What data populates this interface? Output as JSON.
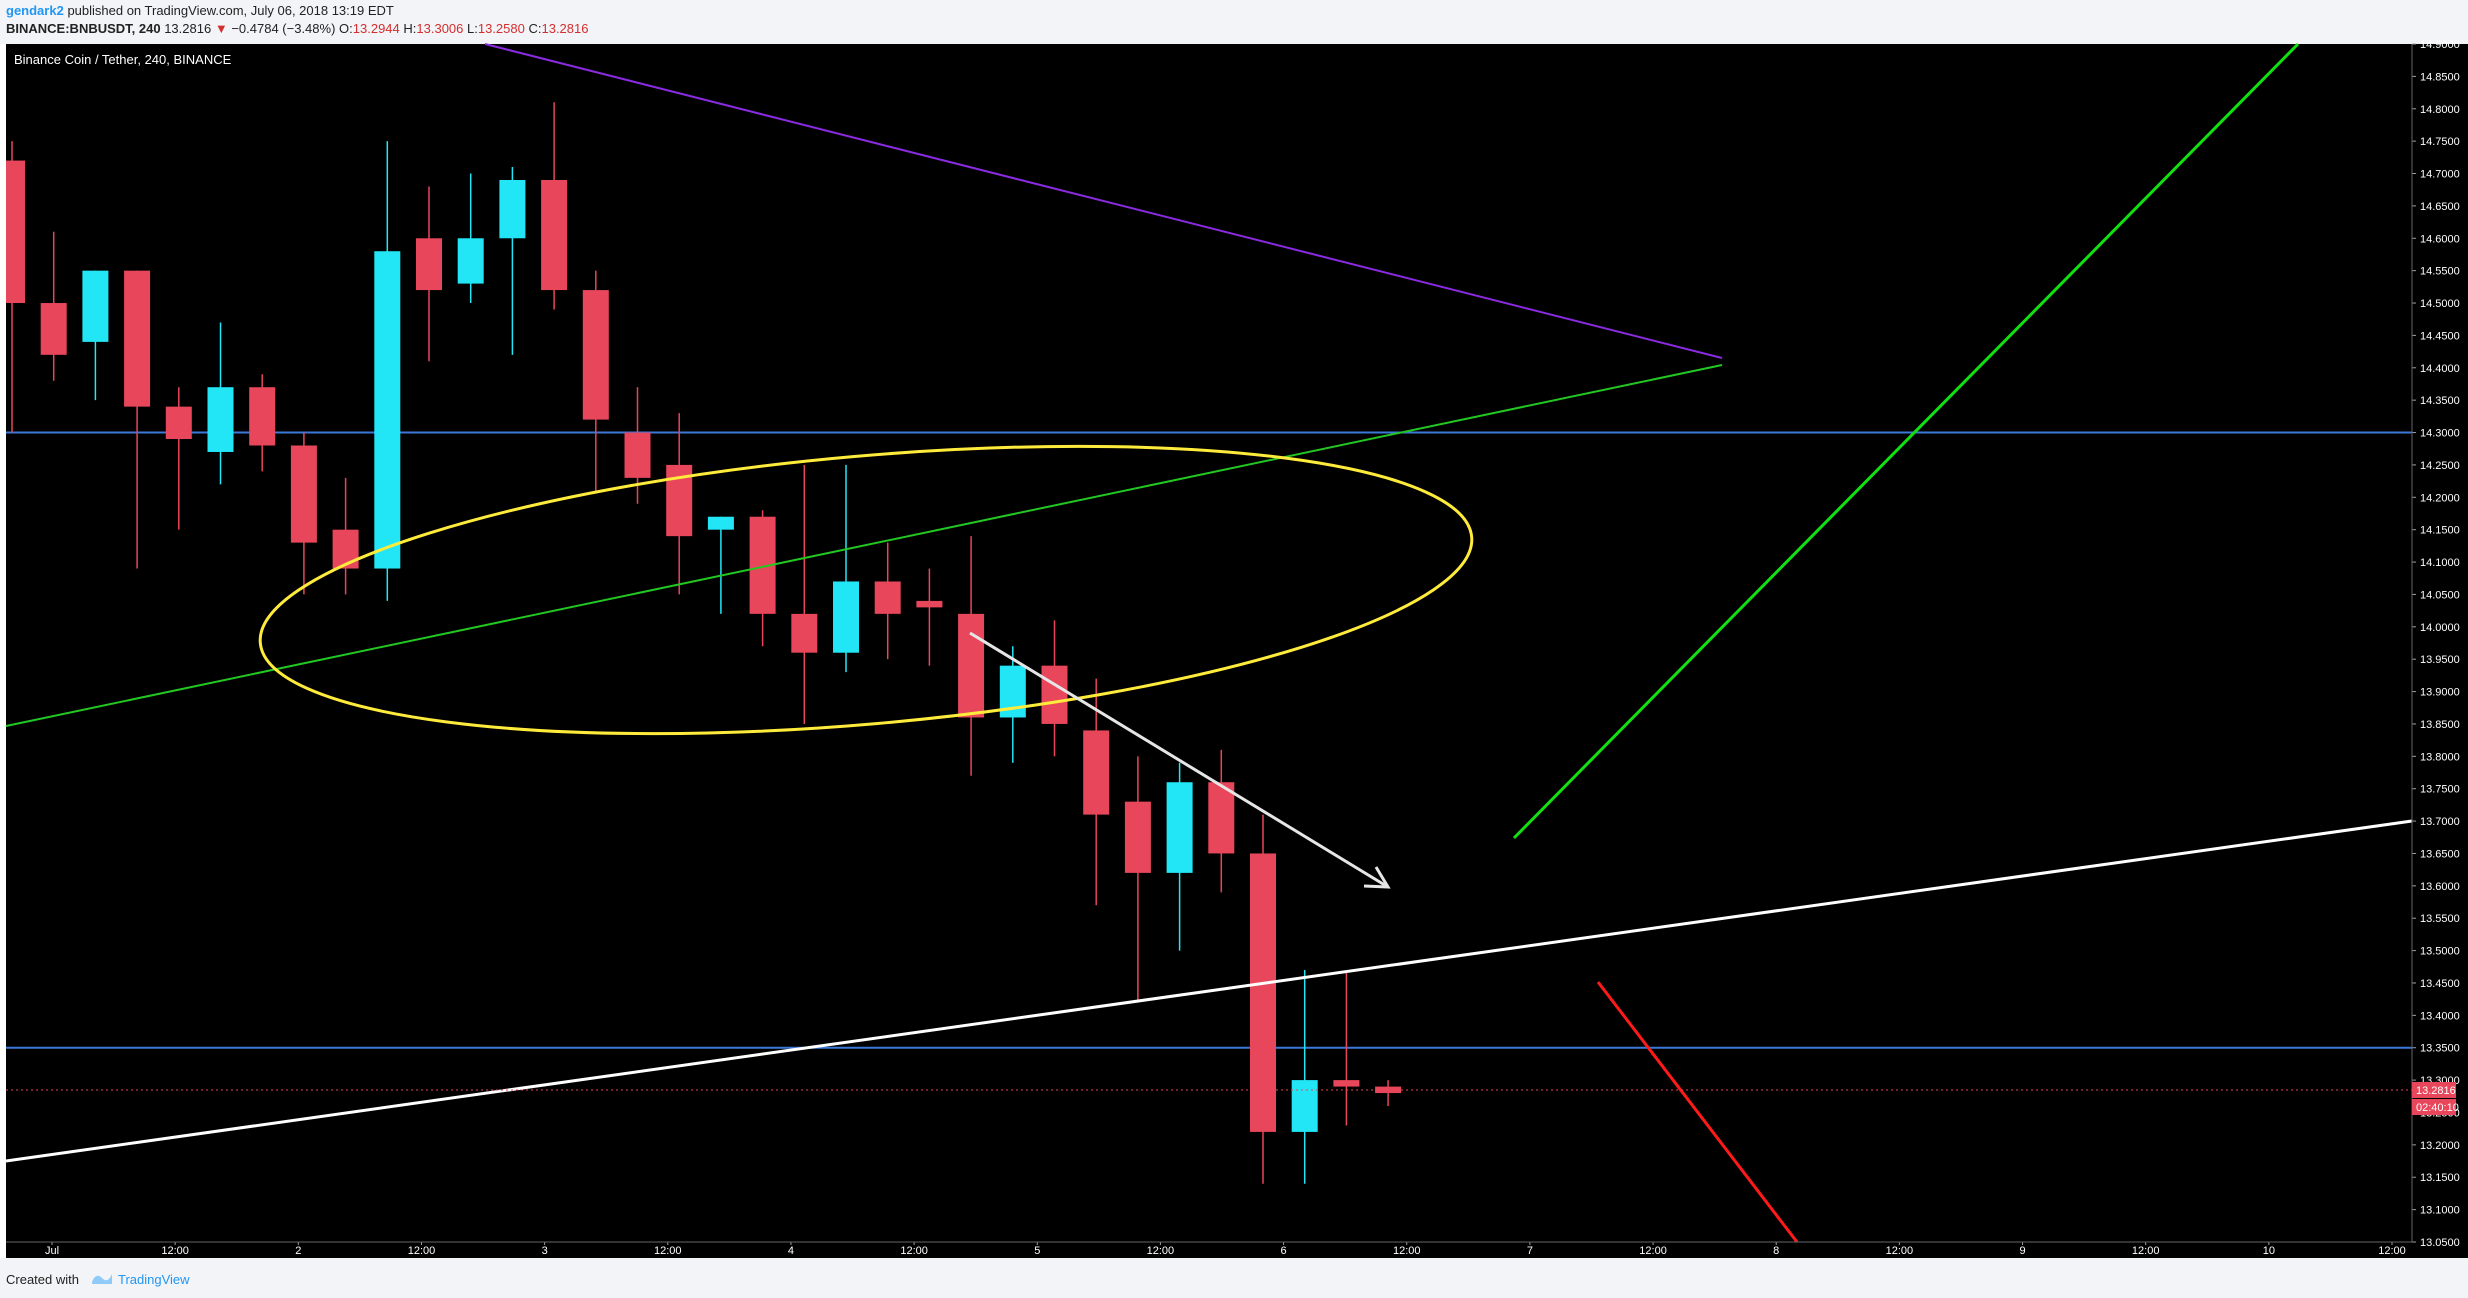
{
  "header": {
    "author": "gendark2",
    "published": "published on TradingView.com, July 06, 2018 13:19 EDT",
    "symbol": "BINANCE:BNBUSDT, 240",
    "last": "13.2816",
    "change_arrow": "▼",
    "change": "−0.4784 (−3.48%)",
    "o_label": "O:",
    "o": "13.2944",
    "h_label": "H:",
    "h": "13.3006",
    "l_label": "L:",
    "l": "13.2580",
    "c_label": "C:",
    "c": "13.2816"
  },
  "chart": {
    "legend": "Binance Coin / Tether, 240, BINANCE",
    "price_tag": "13.2816",
    "countdown": "02:40:10"
  },
  "footer": {
    "created_with": "Created with",
    "brand": "TradingView"
  },
  "colors": {
    "background": "#000000",
    "bull": "#22e6f6",
    "bear": "#e7465b",
    "horizontal_line": "#3c78d8",
    "triangle_upper": "#8a2be2",
    "triangle_lower": "#22c722",
    "ellipse": "#ffeb3b",
    "channel": "#ffffff",
    "big_green": "#11e011",
    "red_line": "#ff1a1a"
  },
  "chart_data": {
    "type": "candlestick",
    "ylim": [
      13.05,
      14.9
    ],
    "ytick_step": 0.05,
    "xaxis_labels": [
      "Jul",
      "12:00",
      "2",
      "12:00",
      "3",
      "12:00",
      "4",
      "12:00",
      "5",
      "12:00",
      "6",
      "12:00",
      "7",
      "12:00",
      "8",
      "12:00",
      "9",
      "12:00",
      "10",
      "12:00"
    ],
    "candles": [
      {
        "o": 14.72,
        "h": 14.75,
        "l": 14.3,
        "c": 14.5
      },
      {
        "o": 14.5,
        "h": 14.61,
        "l": 14.38,
        "c": 14.42
      },
      {
        "o": 14.44,
        "h": 14.55,
        "l": 14.35,
        "c": 14.55
      },
      {
        "o": 14.55,
        "h": 14.55,
        "l": 14.09,
        "c": 14.34
      },
      {
        "o": 14.34,
        "h": 14.37,
        "l": 14.15,
        "c": 14.29
      },
      {
        "o": 14.27,
        "h": 14.47,
        "l": 14.22,
        "c": 14.37
      },
      {
        "o": 14.37,
        "h": 14.39,
        "l": 14.24,
        "c": 14.28
      },
      {
        "o": 14.28,
        "h": 14.3,
        "l": 14.05,
        "c": 14.13
      },
      {
        "o": 14.15,
        "h": 14.23,
        "l": 14.05,
        "c": 14.09
      },
      {
        "o": 14.09,
        "h": 14.75,
        "l": 14.04,
        "c": 14.58
      },
      {
        "o": 14.6,
        "h": 14.68,
        "l": 14.41,
        "c": 14.52
      },
      {
        "o": 14.53,
        "h": 14.7,
        "l": 14.5,
        "c": 14.6
      },
      {
        "o": 14.6,
        "h": 14.71,
        "l": 14.42,
        "c": 14.69
      },
      {
        "o": 14.69,
        "h": 14.81,
        "l": 14.49,
        "c": 14.52
      },
      {
        "o": 14.52,
        "h": 14.55,
        "l": 14.21,
        "c": 14.32
      },
      {
        "o": 14.3,
        "h": 14.37,
        "l": 14.19,
        "c": 14.23
      },
      {
        "o": 14.25,
        "h": 14.33,
        "l": 14.05,
        "c": 14.14
      },
      {
        "o": 14.15,
        "h": 14.17,
        "l": 14.02,
        "c": 14.17
      },
      {
        "o": 14.17,
        "h": 14.18,
        "l": 13.97,
        "c": 14.02
      },
      {
        "o": 14.02,
        "h": 14.25,
        "l": 13.85,
        "c": 13.96
      },
      {
        "o": 13.96,
        "h": 14.25,
        "l": 13.93,
        "c": 14.07
      },
      {
        "o": 14.07,
        "h": 14.13,
        "l": 13.95,
        "c": 14.02
      },
      {
        "o": 14.04,
        "h": 14.09,
        "l": 13.94,
        "c": 14.03
      },
      {
        "o": 14.02,
        "h": 14.14,
        "l": 13.77,
        "c": 13.86
      },
      {
        "o": 13.86,
        "h": 13.97,
        "l": 13.79,
        "c": 13.94
      },
      {
        "o": 13.94,
        "h": 14.01,
        "l": 13.8,
        "c": 13.85
      },
      {
        "o": 13.84,
        "h": 13.92,
        "l": 13.57,
        "c": 13.71
      },
      {
        "o": 13.73,
        "h": 13.8,
        "l": 13.42,
        "c": 13.62
      },
      {
        "o": 13.62,
        "h": 13.79,
        "l": 13.5,
        "c": 13.76
      },
      {
        "o": 13.76,
        "h": 13.81,
        "l": 13.59,
        "c": 13.65
      },
      {
        "o": 13.65,
        "h": 13.71,
        "l": 13.14,
        "c": 13.22
      },
      {
        "o": 13.22,
        "h": 13.47,
        "l": 13.14,
        "c": 13.3
      },
      {
        "o": 13.3,
        "h": 13.47,
        "l": 13.23,
        "c": 13.29
      },
      {
        "o": 13.29,
        "h": 13.3,
        "l": 13.26,
        "c": 13.28
      }
    ],
    "horizontal_lines": [
      14.3,
      13.35
    ],
    "last_price": 13.2816
  }
}
